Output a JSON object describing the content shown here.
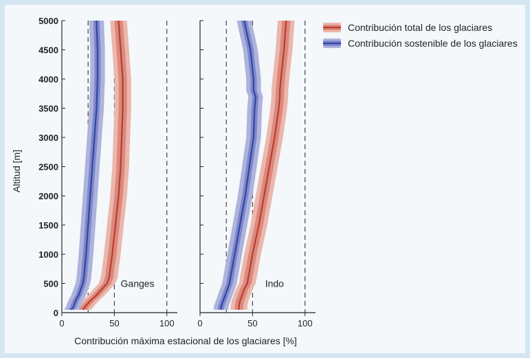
{
  "chart_data": {
    "type": "line",
    "xlabel": "Contribución máxima estacional de los glaciares [%]",
    "ylabel": "Altitud [m]",
    "ylim": [
      0,
      5000
    ],
    "yticks": [
      0,
      500,
      1000,
      1500,
      2000,
      2500,
      3000,
      3500,
      4000,
      4500,
      5000
    ],
    "legend": {
      "position": "top-right",
      "entries": [
        "Contribución total de los glaciares",
        "Contribución sostenible de los glaciares"
      ]
    },
    "colors": {
      "total": "#c0392b",
      "total_band_inner": "#d98a7e",
      "total_band_outer": "#ecb7ad",
      "sustainable": "#3344aa",
      "sustainable_band_inner": "#7f88c8",
      "sustainable_band_outer": "#aeb3dd"
    },
    "panels": [
      {
        "label": "Ganges",
        "xlim": [
          0,
          110
        ],
        "xticks": [
          0,
          50,
          100
        ],
        "reference_lines_x": [
          25,
          50,
          100
        ],
        "y": [
          50,
          100,
          200,
          300,
          400,
          500,
          600,
          1000,
          1500,
          2000,
          2500,
          3000,
          3500,
          4000,
          4500,
          5000
        ],
        "series": [
          {
            "key": "total",
            "name": "Contribución total de los glaciares",
            "values": [
              20,
              22,
              27,
              33,
              38,
              43,
              45,
              48,
              51,
              54,
              56,
              57,
              58,
              58,
              56,
              54
            ],
            "band_inner": [
              4,
              4,
              4,
              4,
              4,
              4,
              4,
              4,
              4,
              4,
              4,
              4,
              4,
              4,
              4,
              4
            ],
            "band_outer": [
              8,
              8,
              8,
              8,
              8,
              8,
              8,
              8,
              8,
              8,
              8,
              8,
              8,
              8,
              8,
              8
            ]
          },
          {
            "key": "sustainable",
            "name": "Contribución sostenible de los glaciares",
            "values": [
              9,
              11,
              13,
              16,
              18,
              20,
              21,
              23,
              25,
              27,
              29,
              31,
              33,
              34,
              34,
              33
            ],
            "band_inner": [
              3,
              3,
              3,
              3,
              3,
              3,
              3,
              3,
              3,
              3,
              3,
              3,
              3,
              3,
              3,
              3
            ],
            "band_outer": [
              7,
              7,
              7,
              7,
              7,
              7,
              7,
              7,
              7,
              7,
              7,
              7,
              7,
              7,
              7,
              7
            ]
          }
        ]
      },
      {
        "label": "Indo",
        "xlim": [
          0,
          110
        ],
        "xticks": [
          0,
          50,
          100
        ],
        "reference_lines_x": [
          25,
          50,
          100
        ],
        "y": [
          50,
          100,
          200,
          300,
          400,
          500,
          1000,
          1500,
          2000,
          2500,
          3000,
          3500,
          3700,
          3800,
          4000,
          4500,
          5000
        ],
        "series": [
          {
            "key": "total",
            "name": "Contribución total de los glaciares",
            "values": [
              37,
              37,
              38,
              40,
              42,
              45,
              50,
              56,
              61,
              66,
              71,
              75,
              76,
              76,
              77,
              80,
              82
            ],
            "band_inner": [
              4,
              4,
              4,
              4,
              4,
              4,
              4,
              4,
              4,
              4,
              4,
              4,
              4,
              4,
              4,
              4,
              4
            ],
            "band_outer": [
              8,
              8,
              8,
              8,
              8,
              8,
              8,
              8,
              8,
              8,
              8,
              8,
              8,
              8,
              8,
              8,
              8
            ]
          },
          {
            "key": "sustainable",
            "name": "Contribución sostenible de los glaciares",
            "values": [
              20,
              20,
              22,
              24,
              26,
              28,
              33,
              38,
              43,
              47,
              51,
              52,
              53,
              51,
              51,
              48,
              42
            ],
            "band_inner": [
              3,
              3,
              3,
              3,
              3,
              3,
              3,
              3,
              3,
              3,
              3,
              3,
              3,
              3,
              3,
              3,
              3
            ],
            "band_outer": [
              7,
              7,
              7,
              7,
              7,
              7,
              7,
              7,
              7,
              7,
              7,
              7,
              7,
              7,
              7,
              7,
              7
            ]
          }
        ]
      }
    ]
  }
}
